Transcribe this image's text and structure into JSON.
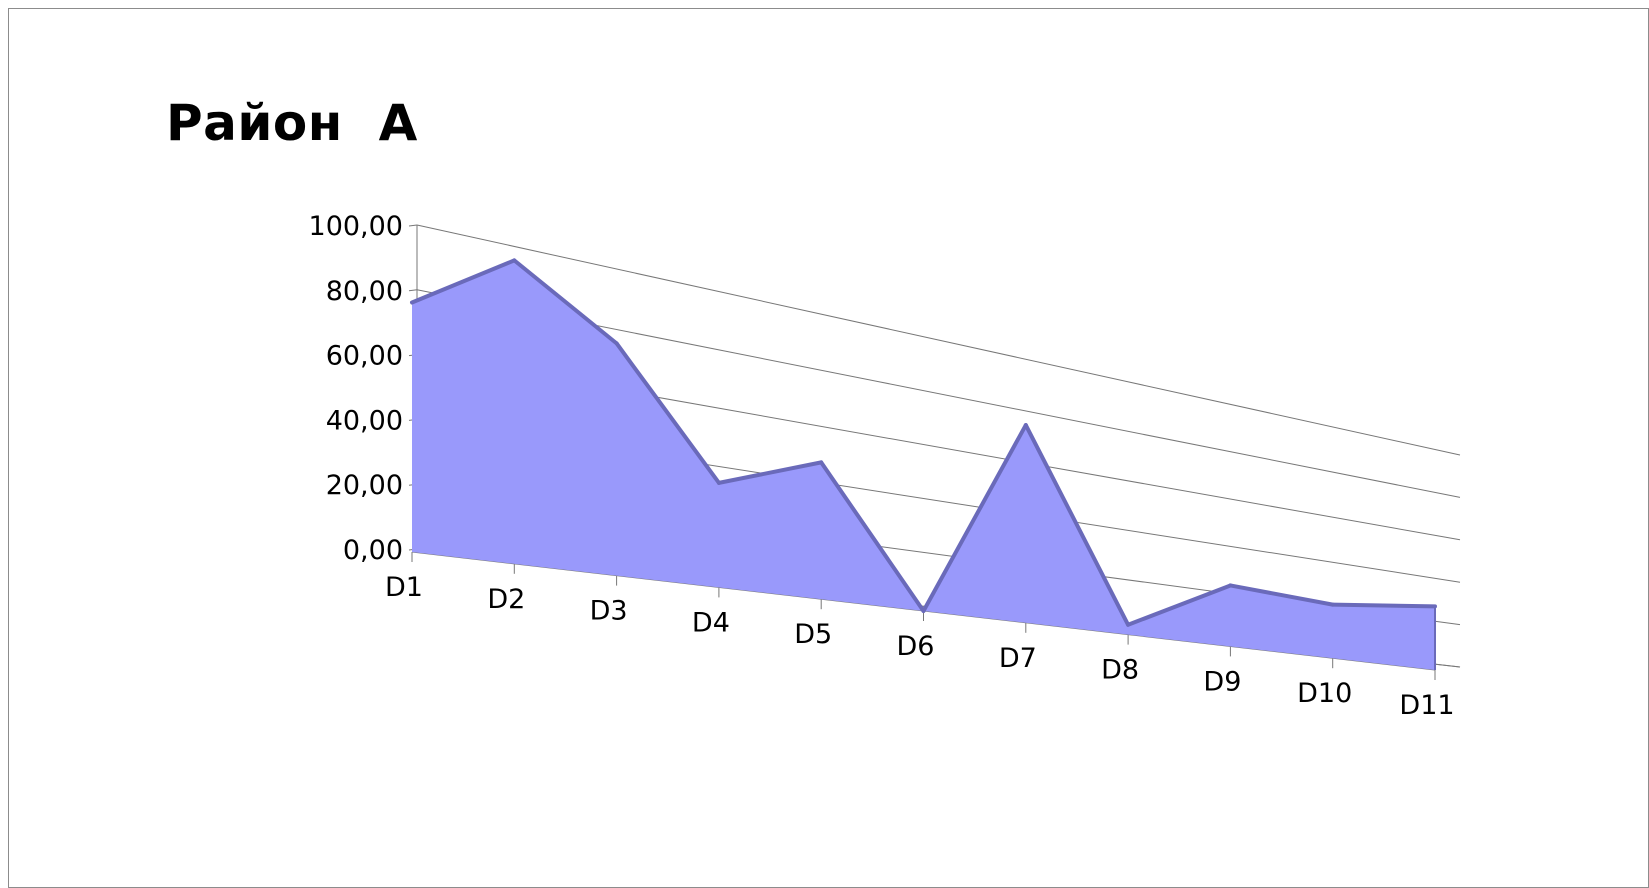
{
  "chart_data": {
    "type": "area",
    "title": "Район  A",
    "xlabel": "",
    "ylabel": "",
    "categories": [
      "D1",
      "D2",
      "D3",
      "D4",
      "D5",
      "D6",
      "D7",
      "D8",
      "D9",
      "D10",
      "D11"
    ],
    "series": [
      {
        "values": [
          77,
          97,
          77,
          36,
          49,
          0,
          77,
          4,
          26,
          24,
          30
        ]
      }
    ],
    "y_ticks": [
      "0,00",
      "20,00",
      "40,00",
      "60,00",
      "80,00",
      "100,00"
    ],
    "ylim": [
      0,
      100
    ],
    "grid": true,
    "legend": "none",
    "perspective": "3d",
    "colors": {
      "fill": "#9999fb",
      "edge": "#6a6aba",
      "grid": "#777777"
    }
  }
}
